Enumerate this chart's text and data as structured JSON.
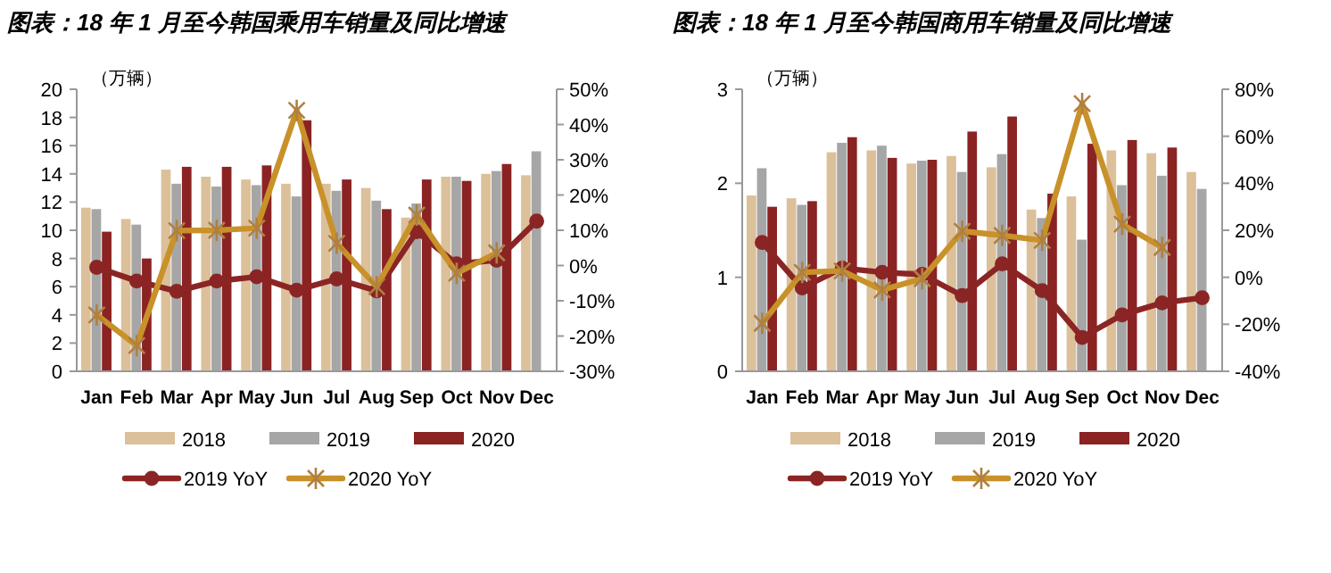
{
  "chart_data": [
    {
      "type": "bar",
      "title": "图表：18 年 1 月至今韩国乘用车销量及同比增速",
      "ylabel": "（万辆）",
      "categories": [
        "Jan",
        "Feb",
        "Mar",
        "Apr",
        "May",
        "Jun",
        "Jul",
        "Aug",
        "Sep",
        "Oct",
        "Nov",
        "Dec"
      ],
      "ylim": [
        0,
        20
      ],
      "yticks": [
        0,
        2,
        4,
        6,
        8,
        10,
        12,
        14,
        16,
        18,
        20
      ],
      "y2lim": [
        -30,
        50
      ],
      "y2ticks": [
        {
          "value": -30,
          "label": "-30%"
        },
        {
          "value": -20,
          "label": "-20%"
        },
        {
          "value": -10,
          "label": "-10%"
        },
        {
          "value": 0,
          "label": "0%"
        },
        {
          "value": 10,
          "label": "10%"
        },
        {
          "value": 20,
          "label": "20%"
        },
        {
          "value": 30,
          "label": "30%"
        },
        {
          "value": 40,
          "label": "40%"
        },
        {
          "value": 50,
          "label": "50%"
        }
      ],
      "legend": "bottom",
      "grid": false,
      "series": [
        {
          "name": "2018",
          "color": "#dcc09a",
          "values": [
            11.6,
            10.8,
            14.3,
            13.8,
            13.6,
            13.3,
            13.3,
            13.0,
            10.9,
            13.8,
            14.0,
            13.9
          ]
        },
        {
          "name": "2019",
          "color": "#a6a6a6",
          "values": [
            11.5,
            10.4,
            13.3,
            13.1,
            13.2,
            12.4,
            12.8,
            12.1,
            11.9,
            13.8,
            14.2,
            15.6
          ]
        },
        {
          "name": "2020",
          "color": "#8b2323",
          "values": [
            9.9,
            8.0,
            14.5,
            14.5,
            14.6,
            17.8,
            13.6,
            11.5,
            13.6,
            13.5,
            14.7,
            null
          ]
        },
        {
          "name": "2019 YoY",
          "type": "line",
          "axis": "y2",
          "marker": "circle",
          "color": "#8b2525",
          "values": [
            -0.5,
            -4.4,
            -7.3,
            -4.4,
            -3.2,
            -7.0,
            -3.8,
            -7.2,
            9.6,
            0.5,
            1.5,
            12.6
          ]
        },
        {
          "name": "2020 YoY",
          "type": "line",
          "axis": "y2",
          "marker": "cross",
          "color": "#c8912a",
          "values": [
            -14,
            -22.7,
            9.9,
            10,
            10.6,
            44,
            6.3,
            -6,
            14.3,
            -2.2,
            3.6,
            null
          ]
        }
      ]
    },
    {
      "type": "bar",
      "title": "图表：18 年 1 月至今韩国商用车销量及同比增速",
      "ylabel": "（万辆）",
      "categories": [
        "Jan",
        "Feb",
        "Mar",
        "Apr",
        "May",
        "Jun",
        "Jul",
        "Aug",
        "Sep",
        "Oct",
        "Nov",
        "Dec"
      ],
      "ylim": [
        0,
        3
      ],
      "yticks": [
        0,
        1,
        2,
        3
      ],
      "y2lim": [
        -40,
        80
      ],
      "y2ticks": [
        {
          "value": -40,
          "label": "-40%"
        },
        {
          "value": -20,
          "label": "-20%"
        },
        {
          "value": 0,
          "label": "0%"
        },
        {
          "value": 20,
          "label": "20%"
        },
        {
          "value": 40,
          "label": "40%"
        },
        {
          "value": 60,
          "label": "60%"
        },
        {
          "value": 80,
          "label": "80%"
        }
      ],
      "legend": "bottom",
      "grid": false,
      "series": [
        {
          "name": "2018",
          "color": "#dcc09a",
          "values": [
            1.87,
            1.84,
            2.33,
            2.35,
            2.21,
            2.29,
            2.17,
            1.72,
            1.86,
            2.35,
            2.32,
            2.12
          ]
        },
        {
          "name": "2019",
          "color": "#a6a6a6",
          "values": [
            2.16,
            1.77,
            2.43,
            2.4,
            2.24,
            2.12,
            2.31,
            1.63,
            1.4,
            1.98,
            2.08,
            1.94
          ]
        },
        {
          "name": "2020",
          "color": "#8b2323",
          "values": [
            1.75,
            1.81,
            2.49,
            2.27,
            2.25,
            2.55,
            2.71,
            1.89,
            2.42,
            2.46,
            2.38,
            null
          ]
        },
        {
          "name": "2019 YoY",
          "type": "line",
          "axis": "y2",
          "marker": "circle",
          "color": "#8b2525",
          "values": [
            14.8,
            -4.5,
            3.9,
            2.1,
            1.2,
            -7.8,
            5.7,
            -5.7,
            -25.6,
            -16,
            -10.9,
            -8.7
          ]
        },
        {
          "name": "2020 YoY",
          "type": "line",
          "axis": "y2",
          "marker": "cross",
          "color": "#c8912a",
          "values": [
            -19.6,
            2.1,
            2.7,
            -5.4,
            -0.6,
            19.6,
            17.8,
            15.7,
            73.9,
            22.6,
            12.7,
            null
          ]
        }
      ]
    }
  ]
}
